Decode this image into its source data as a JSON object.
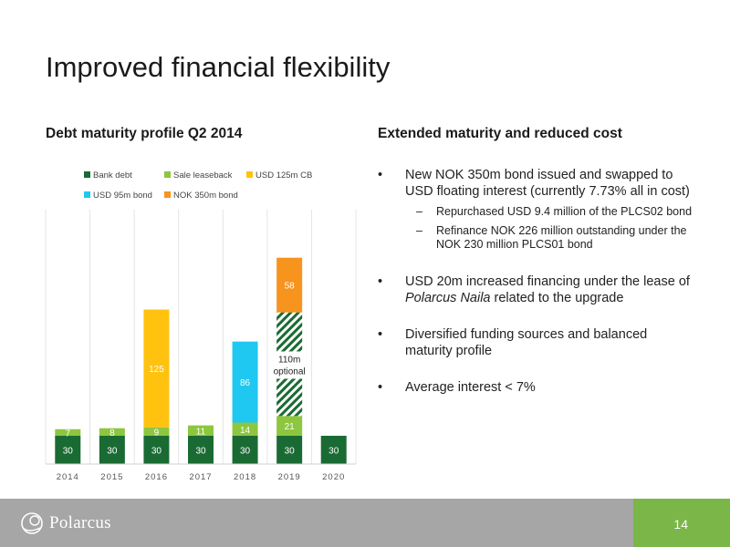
{
  "title": "Improved financial flexibility",
  "left_heading": "Debt maturity profile Q2 2014",
  "right_heading": "Extended maturity and reduced cost",
  "bullets": {
    "b1": "New NOK 350m bond issued and swapped to USD floating interest (currently 7.73% all in cost)",
    "b1_sub1": "Repurchased USD 9.4 million of the PLCS02 bond",
    "b1_sub2": "Refinance NOK 226 million outstanding under the NOK 230 million PLCS01 bond",
    "b2_pre": "USD 20m increased financing under the lease of ",
    "b2_em": "Polarcus Naila",
    "b2_post": " related to the upgrade",
    "b3": "Diversified funding sources and balanced maturity profile",
    "b4": "Average interest < 7%"
  },
  "footer": {
    "logo_text": "Polarcus",
    "page_number": "14"
  },
  "chart_data": {
    "type": "bar",
    "stacked": true,
    "categories": [
      "2014",
      "2015",
      "2016",
      "2017",
      "2018",
      "2019",
      "2020"
    ],
    "series": [
      {
        "name": "Bank debt",
        "color": "#1a6b33",
        "label_color": "#ffffff",
        "values": [
          30,
          30,
          30,
          30,
          30,
          30,
          30
        ]
      },
      {
        "name": "Sale leaseback",
        "color": "#8dc63f",
        "label_color": "#ffffff",
        "values": [
          7,
          8,
          9,
          11,
          14,
          21,
          0
        ]
      },
      {
        "name": "USD 125m CB",
        "color": "#ffc20e",
        "label_color": "#ffffff",
        "values": [
          0,
          0,
          125,
          0,
          0,
          0,
          0
        ]
      },
      {
        "name": "USD 95m bond",
        "color": "#1ec8f0",
        "label_color": "#ffffff",
        "values": [
          0,
          0,
          0,
          0,
          86,
          0,
          0
        ]
      },
      {
        "name": "110m optional",
        "color": "#1a6b33",
        "pattern": "hatch",
        "label_color": "#222222",
        "values": [
          0,
          0,
          0,
          0,
          0,
          110,
          0
        ]
      },
      {
        "name": "NOK 350m bond",
        "color": "#f7941d",
        "label_color": "#ffffff",
        "values": [
          0,
          0,
          0,
          0,
          0,
          58,
          0
        ]
      }
    ],
    "legend": [
      "Bank debt",
      "Sale leaseback",
      "USD 125m CB",
      "USD 95m bond",
      "NOK 350m bond"
    ],
    "legend_position": "top",
    "annotation": {
      "category": "2019",
      "text_line1": "110m",
      "text_line2": "optional"
    },
    "ylim": [
      0,
      270
    ],
    "grid": "vertical"
  }
}
